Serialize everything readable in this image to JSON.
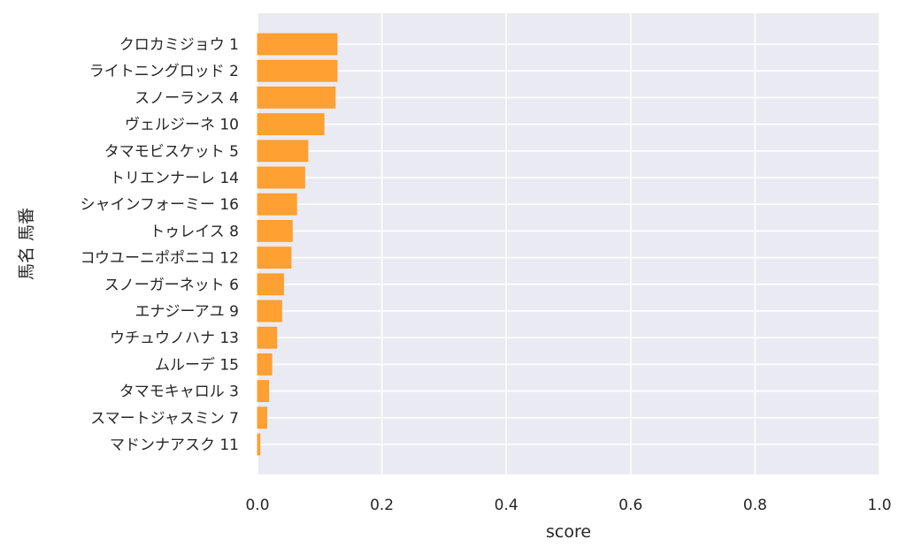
{
  "chart_data": {
    "type": "bar",
    "orientation": "horizontal",
    "categories": [
      "クロカミジョウ 1",
      "ライトニングロッド 2",
      "スノーランス 4",
      "ヴェルジーネ 10",
      "タマモビスケット 5",
      "トリエンナーレ 14",
      "シャインフォーミー 16",
      "トゥレイス 8",
      "コウユーニポポニコ 12",
      "スノーガーネット 6",
      "エナジーアユ 9",
      "ウチュウノハナ 13",
      "ムルーデ 15",
      "タマモキャロル 3",
      "スマートジャスミン 7",
      "マドンナアスク 11"
    ],
    "values": [
      0.128,
      0.128,
      0.125,
      0.107,
      0.081,
      0.076,
      0.063,
      0.056,
      0.054,
      0.042,
      0.039,
      0.031,
      0.023,
      0.018,
      0.015,
      0.004
    ],
    "xlabel": "score",
    "ylabel": "馬名 馬番",
    "xlim": [
      0,
      1
    ],
    "xticks": [
      "0.0",
      "0.2",
      "0.4",
      "0.6",
      "0.8",
      "1.0"
    ],
    "grid": true,
    "colors": {
      "bar": "#ffa033",
      "bar_edge": "#ff9a20",
      "plot_bg": "#eaeaf2",
      "grid": "#ffffff",
      "text": "#262626"
    }
  }
}
